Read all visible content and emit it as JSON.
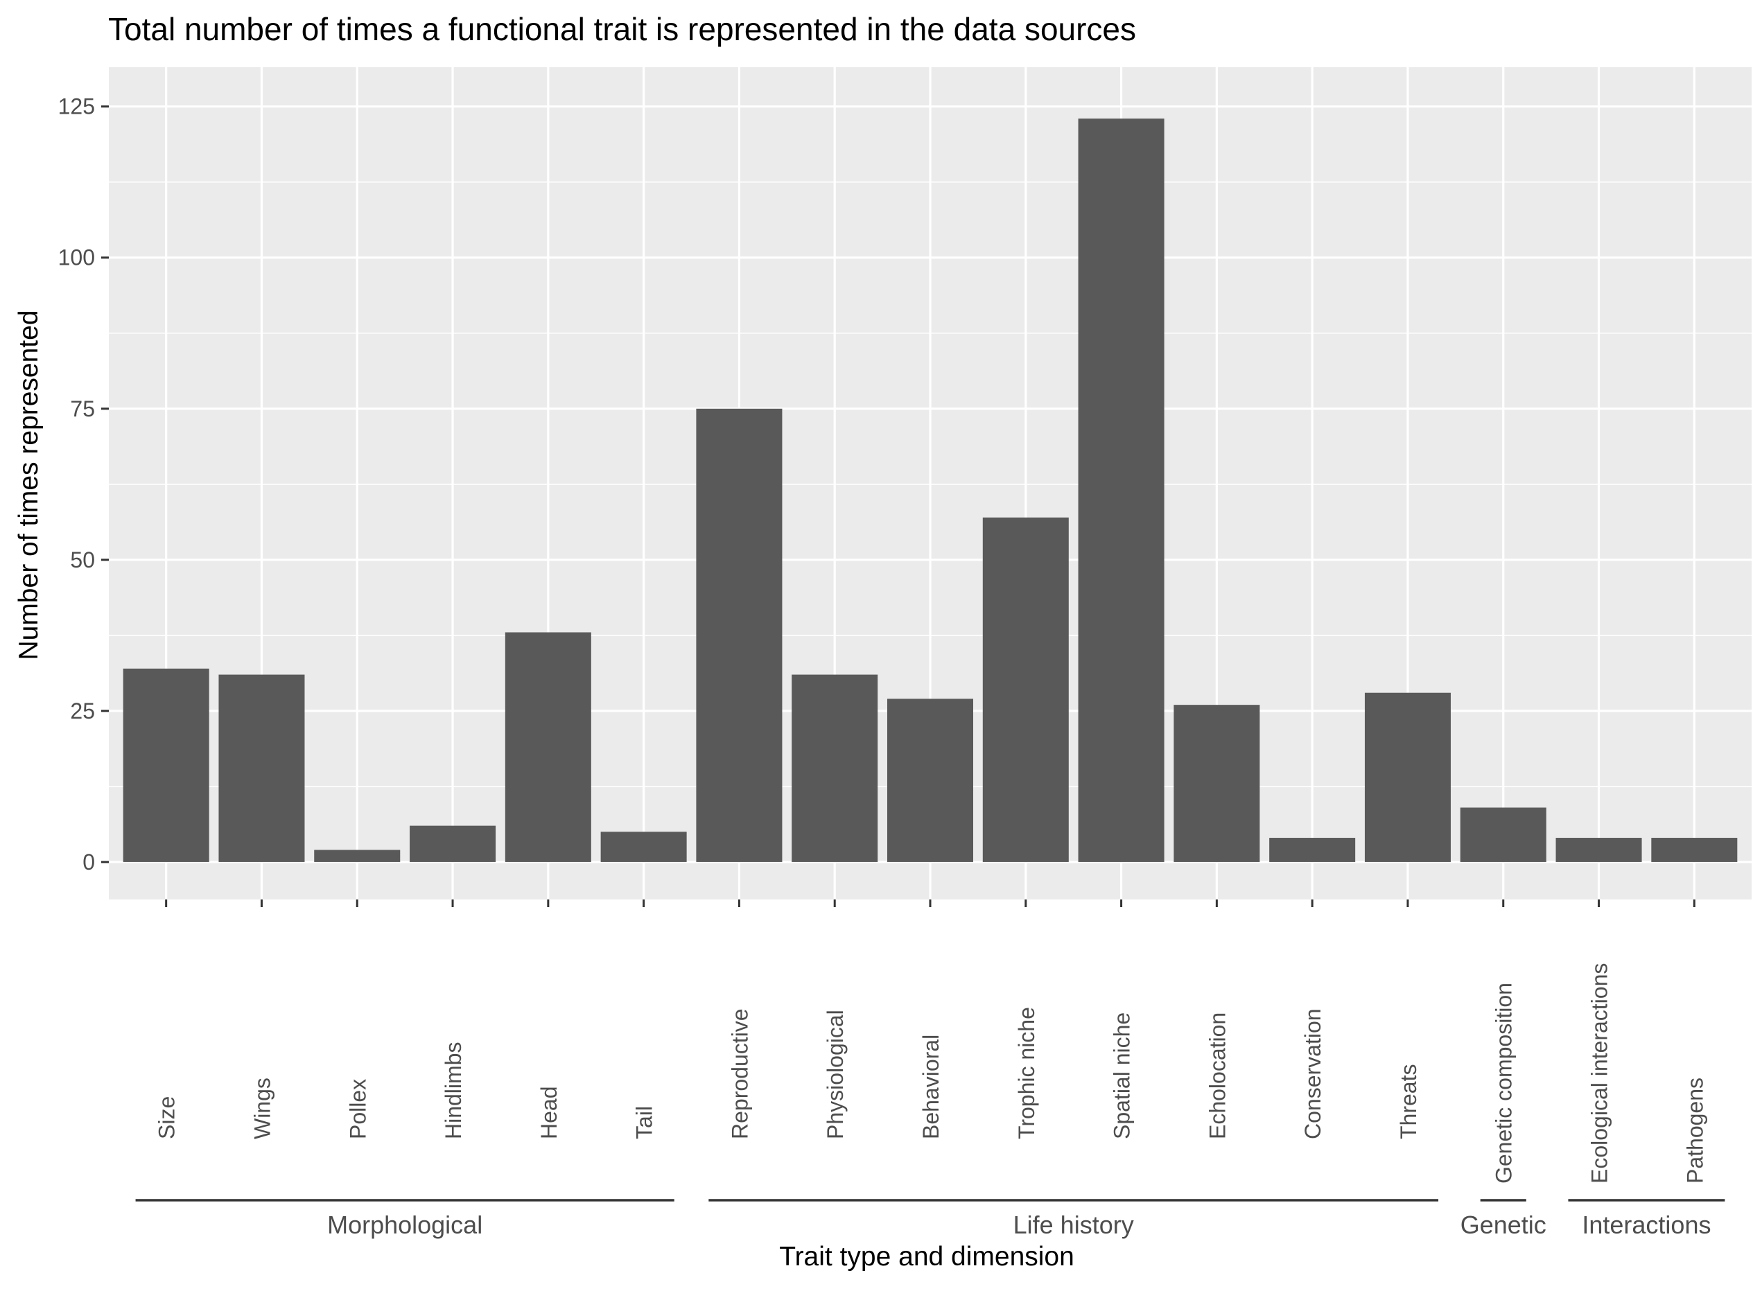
{
  "chart_data": {
    "type": "bar",
    "title": "Total number of times a functional trait is represented in the data sources",
    "xlabel": "Trait type and dimension",
    "ylabel": "Number of times represented",
    "ylim": [
      -6.2,
      131.5
    ],
    "yticks": [
      0,
      25,
      50,
      75,
      100,
      125
    ],
    "grid": true,
    "legend": "none",
    "categories": [
      "Size",
      "Wings",
      "Pollex",
      "Hindlimbs",
      "Head",
      "Tail",
      "Reproductive",
      "Physiological",
      "Behavioral",
      "Trophic niche",
      "Spatial niche",
      "Echolocation",
      "Conservation",
      "Threats",
      "Genetic composition",
      "Ecological interactions",
      "Pathogens"
    ],
    "values": [
      32,
      31,
      2,
      6,
      38,
      5,
      75,
      31,
      27,
      57,
      123,
      26,
      4,
      28,
      9,
      4,
      4
    ],
    "groups": [
      {
        "label": "Morphological",
        "categories": [
          "Size",
          "Wings",
          "Pollex",
          "Hindlimbs",
          "Head",
          "Tail"
        ]
      },
      {
        "label": "Life history",
        "categories": [
          "Reproductive",
          "Physiological",
          "Behavioral",
          "Trophic niche",
          "Spatial niche",
          "Echolocation",
          "Conservation",
          "Threats"
        ]
      },
      {
        "label": "Genetic",
        "categories": [
          "Genetic composition"
        ]
      },
      {
        "label": "Interactions",
        "categories": [
          "Ecological interactions",
          "Pathogens"
        ]
      }
    ],
    "colors": {
      "bar": "#595959",
      "panel": "#ebebeb",
      "grid": "#ffffff",
      "tick_text": "#4d4d4d",
      "title_text": "#000000",
      "group_line": "#333333"
    }
  }
}
